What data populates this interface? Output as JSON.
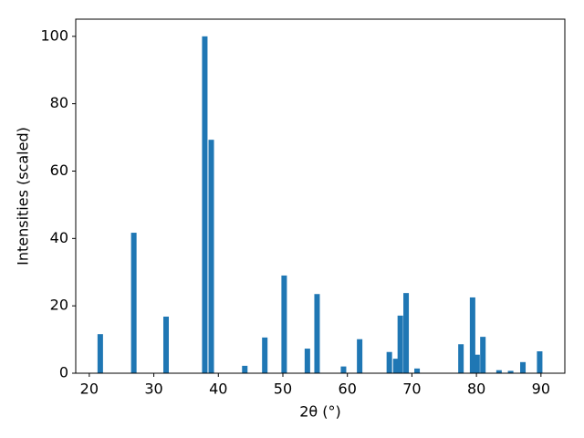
{
  "chart_data": {
    "type": "bar",
    "x_label": "2θ (°)",
    "y_label": "Intensities (scaled)",
    "x": [
      21.7,
      26.9,
      31.9,
      37.9,
      38.9,
      44.1,
      47.2,
      50.2,
      53.8,
      55.3,
      59.4,
      61.9,
      66.5,
      67.5,
      68.2,
      69.1,
      70.8,
      77.6,
      79.4,
      80.1,
      81.0,
      83.5,
      85.3,
      87.2,
      89.8
    ],
    "values": [
      11.6,
      41.7,
      16.8,
      100,
      69.3,
      2.2,
      10.6,
      29.0,
      7.3,
      23.5,
      2.0,
      10.1,
      6.3,
      4.3,
      17.1,
      23.8,
      1.4,
      8.6,
      22.5,
      5.5,
      10.8,
      0.9,
      0.7,
      3.3,
      6.5
    ],
    "color": "#1f77b4",
    "xlim": [
      17.9,
      93.7
    ],
    "ylim": [
      0,
      105.1
    ],
    "xticks": [
      20,
      30,
      40,
      50,
      60,
      70,
      80,
      90
    ],
    "yticks": [
      0,
      20,
      40,
      60,
      80,
      100
    ]
  }
}
